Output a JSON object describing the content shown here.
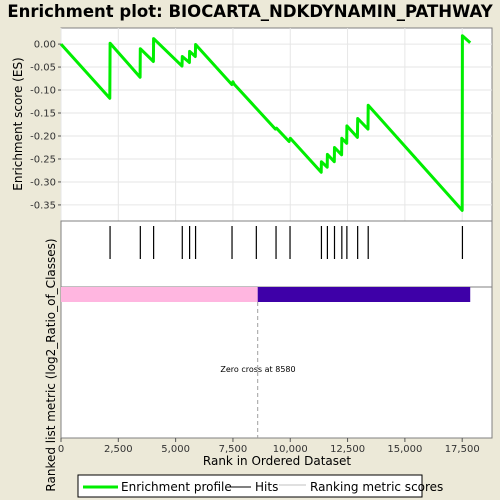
{
  "title": "Enrichment plot: BIOCARTA_NDKDYNAMIN_PATHWAY",
  "chart_data": {
    "type": "line",
    "es_panel": {
      "ylabel": "Enrichment score (ES)",
      "ylim": [
        -0.385,
        0.035
      ],
      "yticks": [
        0.0,
        -0.05,
        -0.1,
        -0.15,
        -0.2,
        -0.25,
        -0.3,
        -0.35
      ],
      "ytick_labels": [
        "0.00",
        "-0.05",
        "-0.10",
        "-0.15",
        "-0.20",
        "-0.25",
        "-0.30",
        "-0.35"
      ],
      "series": [
        {
          "name": "Enrichment profile",
          "color": "#00ee00",
          "points": [
            [
              0,
              0.0
            ],
            [
              2130,
              -0.118
            ],
            [
              2140,
              0.002
            ],
            [
              3450,
              -0.072
            ],
            [
              3460,
              -0.01
            ],
            [
              4030,
              -0.038
            ],
            [
              4040,
              0.012
            ],
            [
              5280,
              -0.048
            ],
            [
              5290,
              -0.027
            ],
            [
              5600,
              -0.04
            ],
            [
              5610,
              -0.016
            ],
            [
              5860,
              -0.027
            ],
            [
              5870,
              -0.001
            ],
            [
              7450,
              -0.088
            ],
            [
              7500,
              -0.082
            ],
            [
              7550,
              -0.087
            ],
            [
              9350,
              -0.185
            ],
            [
              9400,
              -0.183
            ],
            [
              9950,
              -0.212
            ],
            [
              10000,
              -0.205
            ],
            [
              11350,
              -0.279
            ],
            [
              11360,
              -0.256
            ],
            [
              11610,
              -0.268
            ],
            [
              11620,
              -0.24
            ],
            [
              11920,
              -0.256
            ],
            [
              11930,
              -0.225
            ],
            [
              12240,
              -0.241
            ],
            [
              12250,
              -0.205
            ],
            [
              12460,
              -0.216
            ],
            [
              12470,
              -0.178
            ],
            [
              12930,
              -0.203
            ],
            [
              12940,
              -0.162
            ],
            [
              13390,
              -0.185
            ],
            [
              13400,
              -0.133
            ],
            [
              17500,
              -0.362
            ],
            [
              17510,
              0.018
            ],
            [
              17850,
              0.003
            ]
          ]
        }
      ]
    },
    "hits_panel": {
      "name": "Hits",
      "positions": [
        2140,
        3460,
        4040,
        5290,
        5610,
        5870,
        7460,
        8520,
        9380,
        9990,
        11360,
        11620,
        11930,
        12250,
        12470,
        12940,
        13400,
        17510
      ]
    },
    "metric_panel": {
      "ylabel": "Ranked list metric (log2_Ratio_of_Classes)",
      "name": "Ranking metric scores",
      "positive_color": "#ffb6e0",
      "negative_color": "#3e00a8",
      "zero_cross": 8580,
      "last_rank": 17850,
      "annotation": "Zero cross at 8580"
    },
    "xaxis": {
      "xlabel": "Rank in Ordered Dataset",
      "xlim": [
        0,
        18800
      ],
      "xticks": [
        0,
        2500,
        5000,
        7500,
        10000,
        12500,
        15000,
        17500
      ],
      "xtick_labels": [
        "0",
        "2,500",
        "5,000",
        "7,500",
        "10,000",
        "12,500",
        "15,000",
        "17,500"
      ]
    },
    "legend": {
      "placement": "bottom",
      "items": [
        {
          "label": "Enrichment profile",
          "color": "#00ee00"
        },
        {
          "label": "Hits",
          "color": "#000000"
        },
        {
          "label": "Ranking metric scores",
          "color": "#c0c0c0"
        }
      ]
    }
  }
}
